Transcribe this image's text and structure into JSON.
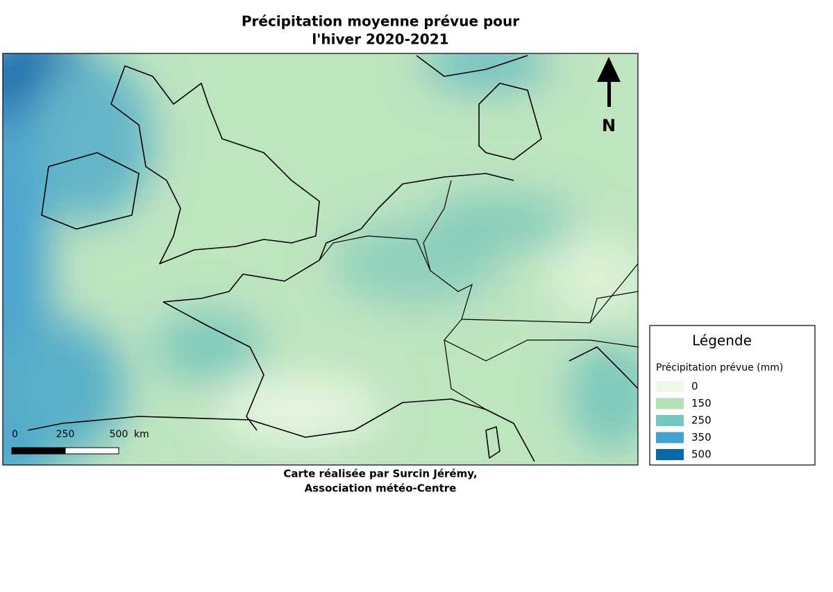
{
  "header": {
    "title_lines": [
      "Précipitation moyenne prévue pour",
      "l'hiver 2020-2021"
    ]
  },
  "north_arrow": {
    "label": "N"
  },
  "scale_bar": {
    "ticks": [
      0,
      250,
      500
    ],
    "unit": "km"
  },
  "legend": {
    "title": "Légende",
    "subtitle": "Précipitation prévue (mm)",
    "items": [
      {
        "value": 0,
        "color": "#eef8e8"
      },
      {
        "value": 150,
        "color": "#b5e0b3"
      },
      {
        "value": 250,
        "color": "#72c7c1"
      },
      {
        "value": 350,
        "color": "#41a1d1"
      },
      {
        "value": 500,
        "color": "#0b66ab"
      }
    ]
  },
  "credit": {
    "lines": [
      "Carte réalisée par Surcin Jérémy,",
      "Association météo-Centre"
    ]
  }
}
